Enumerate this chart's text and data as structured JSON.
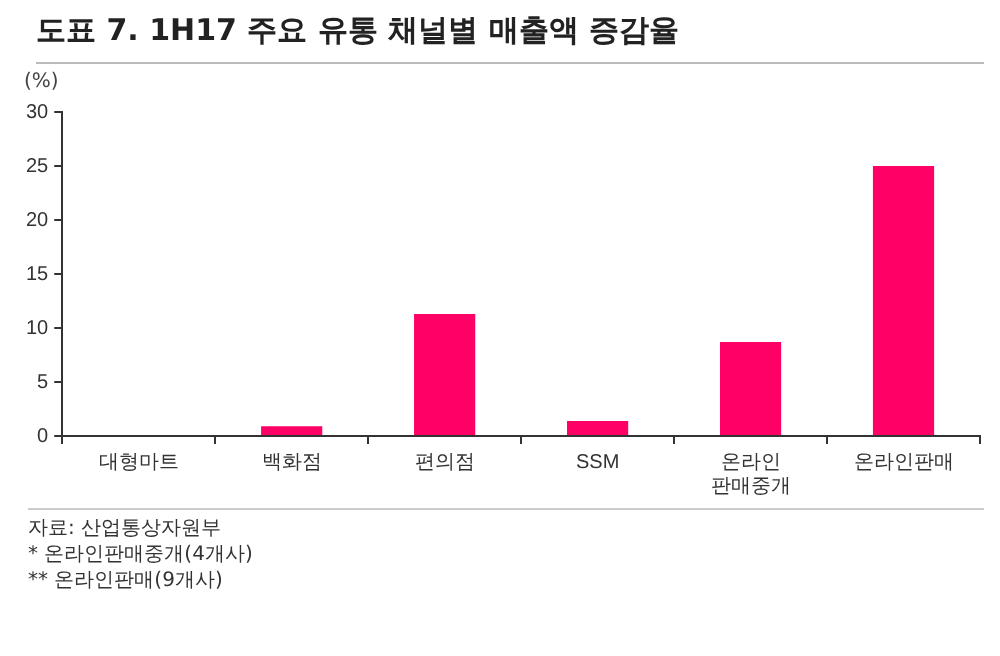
{
  "chart_data": {
    "type": "bar",
    "title": "도표 7. 1H17 주요 유통 채널별 매출액 증감율",
    "ylabel": "(%)",
    "categories": [
      "대형마트",
      "백화점",
      "편의점",
      "SSM",
      "온라인 판매중개",
      "온라인판매"
    ],
    "values": [
      0,
      0.9,
      11.3,
      1.4,
      8.7,
      25
    ],
    "color": "#ff0066",
    "ylim": [
      0,
      30
    ],
    "yticks": [
      0,
      5,
      10,
      15,
      20,
      25,
      30
    ],
    "grid": false,
    "legend": false,
    "annotations": [
      "자료: 산업통상자원부",
      "* 온라인판매중개(4개사)",
      "** 온라인판매(9개사)"
    ]
  }
}
